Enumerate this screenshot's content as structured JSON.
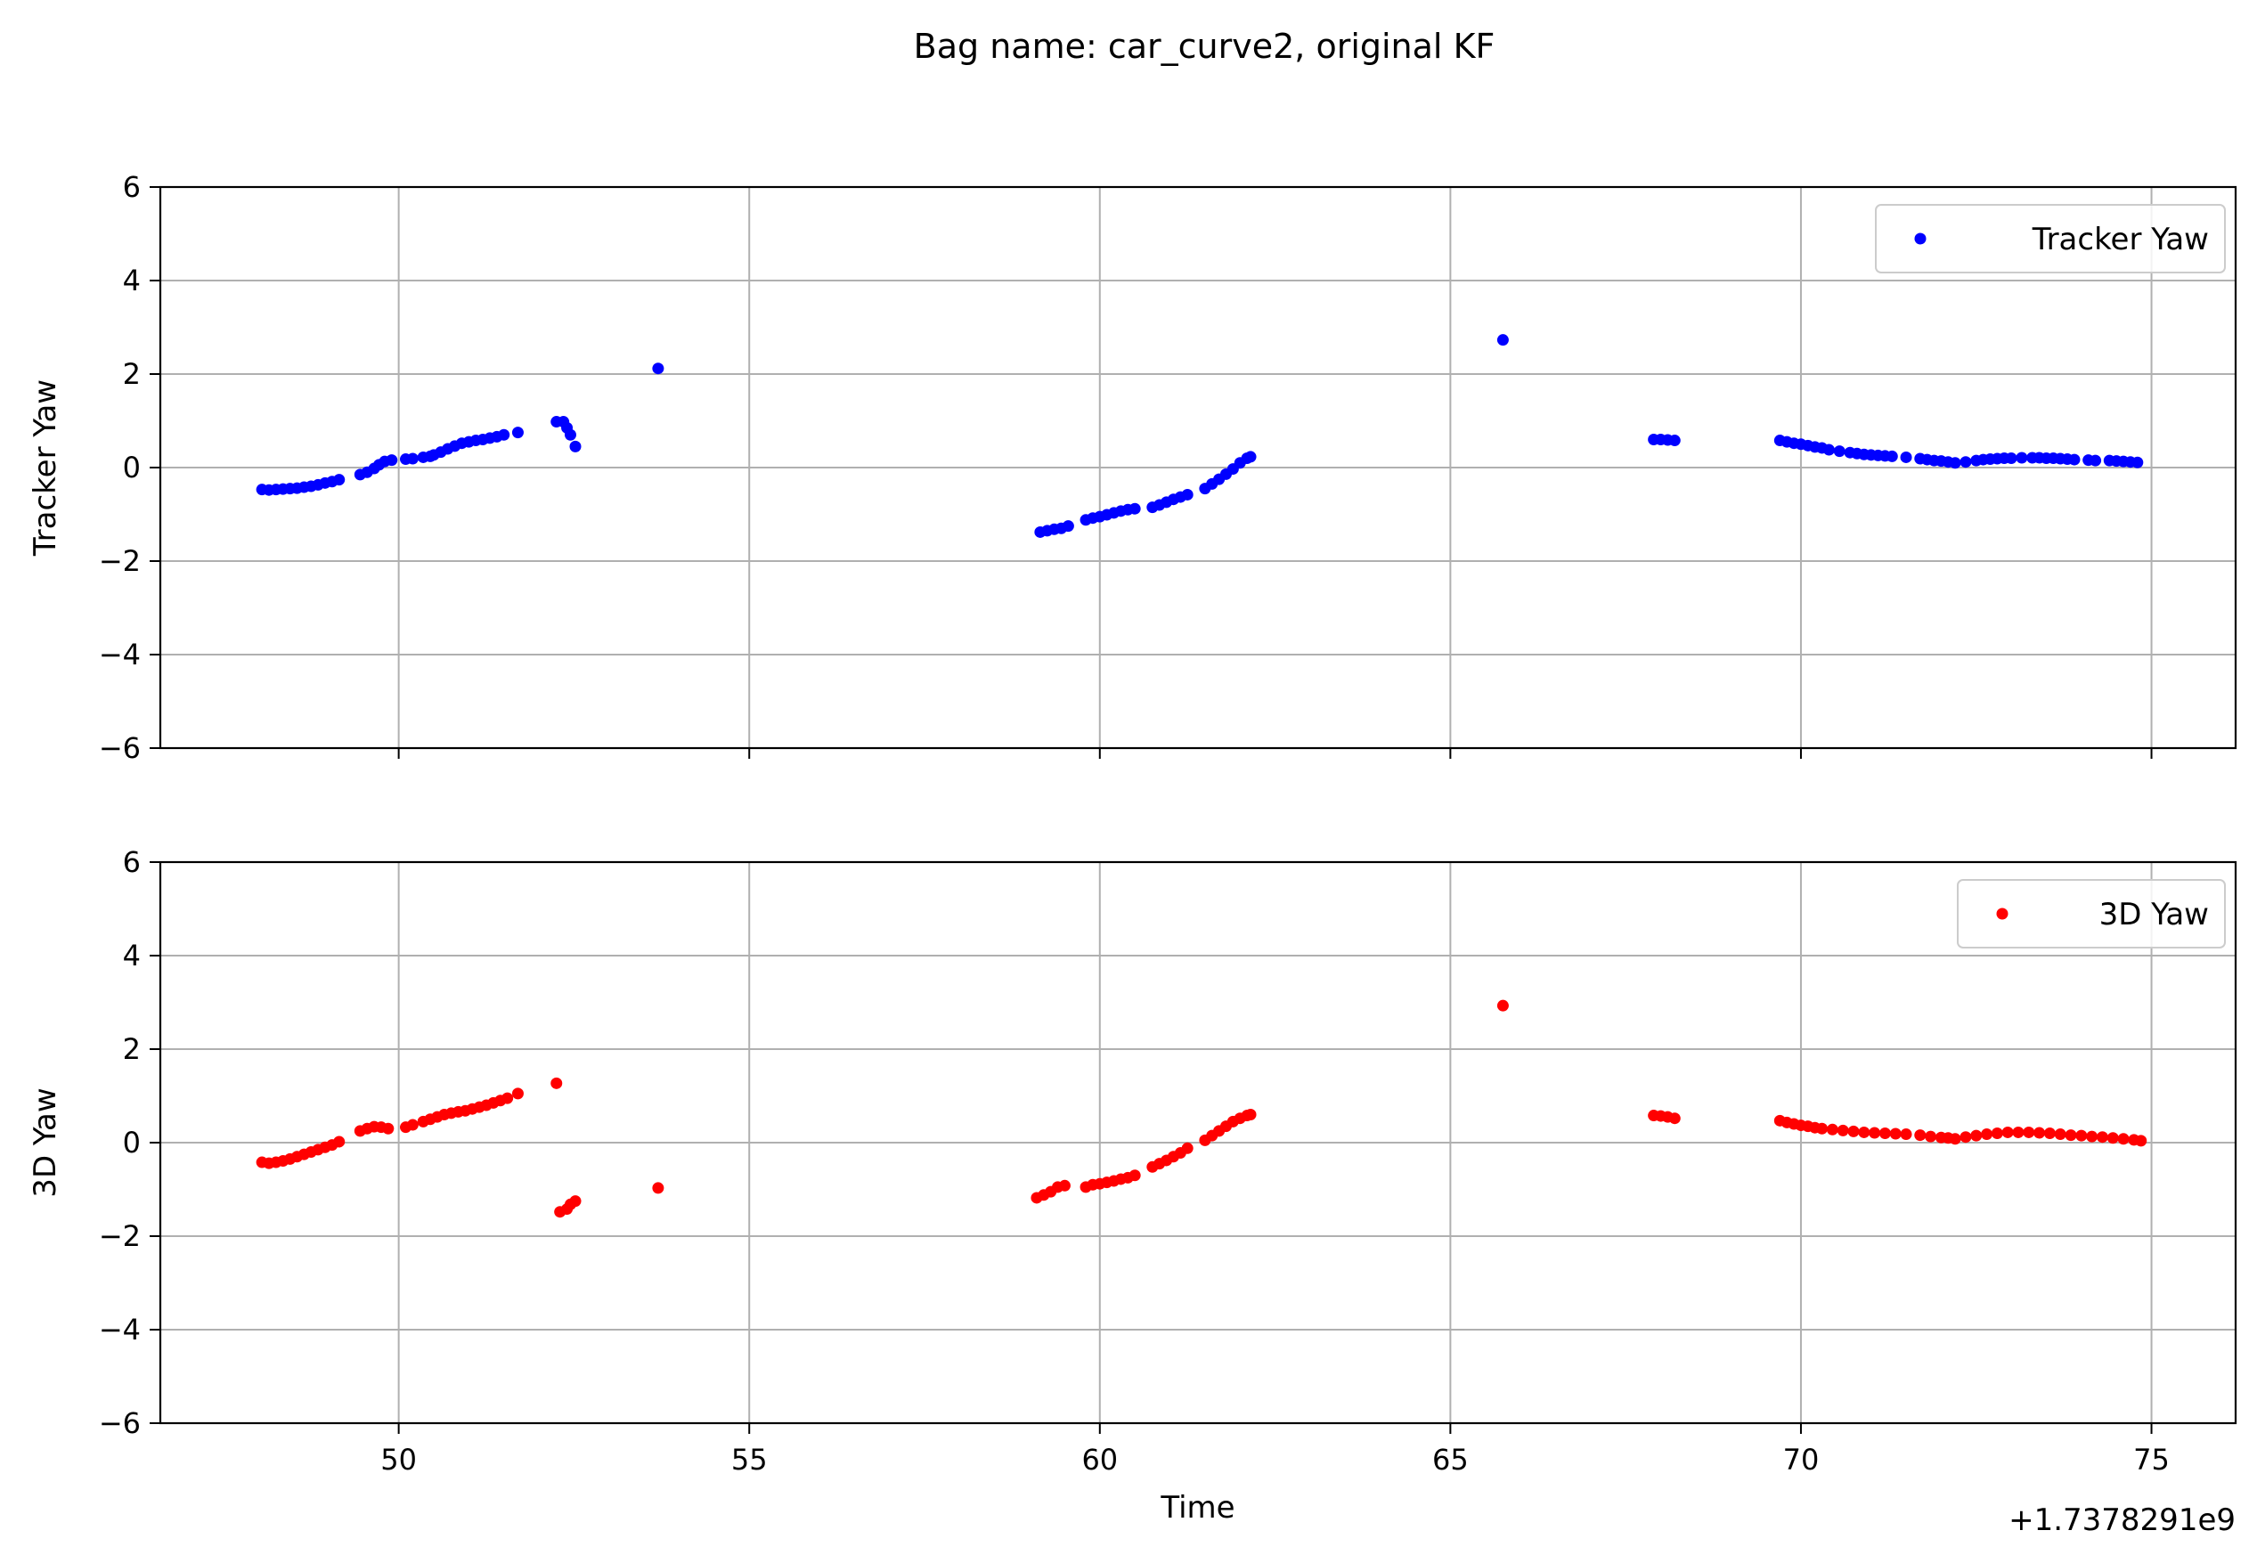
{
  "figure": {
    "title": "Bag name: car_curve2, original KF",
    "x_offset_label": "+1.7378291e9"
  },
  "chart_data": [
    {
      "type": "scatter",
      "id": "top",
      "ylabel": "Tracker Yaw",
      "xlabel": "",
      "xlim": [
        46.6,
        76.2
      ],
      "ylim": [
        -6,
        6
      ],
      "xticks": [
        50,
        55,
        60,
        65,
        70,
        75
      ],
      "yticks": [
        -6,
        -4,
        -2,
        0,
        2,
        4,
        6
      ],
      "grid": true,
      "legend_position": "upper-right",
      "series": [
        {
          "name": "Tracker Yaw",
          "color": "#0000ff",
          "x": [
            48.05,
            48.15,
            48.25,
            48.35,
            48.45,
            48.55,
            48.65,
            48.75,
            48.85,
            48.95,
            49.05,
            49.15,
            49.45,
            49.55,
            49.65,
            49.72,
            49.8,
            49.9,
            50.1,
            50.2,
            50.35,
            50.45,
            50.5,
            50.6,
            50.7,
            50.8,
            50.9,
            51.0,
            51.1,
            51.2,
            51.3,
            51.4,
            51.5,
            51.7,
            52.25,
            52.35,
            52.4,
            52.45,
            52.52,
            53.7,
            59.15,
            59.25,
            59.35,
            59.45,
            59.55,
            59.8,
            59.9,
            60.0,
            60.1,
            60.2,
            60.3,
            60.4,
            60.5,
            60.75,
            60.85,
            60.95,
            61.05,
            61.15,
            61.25,
            61.5,
            61.6,
            61.7,
            61.8,
            61.9,
            62.0,
            62.1,
            62.15,
            65.75,
            67.9,
            68.0,
            68.1,
            68.2,
            69.7,
            69.8,
            69.9,
            70.0,
            70.1,
            70.2,
            70.3,
            70.4,
            70.55,
            70.7,
            70.8,
            70.9,
            71.0,
            71.1,
            71.2,
            71.3,
            71.5,
            71.7,
            71.8,
            71.9,
            72.0,
            72.1,
            72.2,
            72.35,
            72.5,
            72.6,
            72.7,
            72.8,
            72.9,
            73.0,
            73.15,
            73.3,
            73.4,
            73.5,
            73.6,
            73.7,
            73.8,
            73.9,
            74.1,
            74.2,
            74.4,
            74.5,
            74.6,
            74.7,
            74.8
          ],
          "y": [
            -0.47,
            -0.48,
            -0.47,
            -0.46,
            -0.45,
            -0.44,
            -0.42,
            -0.4,
            -0.37,
            -0.33,
            -0.3,
            -0.26,
            -0.15,
            -0.1,
            -0.02,
            0.06,
            0.13,
            0.16,
            0.18,
            0.19,
            0.22,
            0.24,
            0.27,
            0.33,
            0.4,
            0.46,
            0.52,
            0.55,
            0.58,
            0.6,
            0.63,
            0.66,
            0.7,
            0.75,
            0.98,
            0.98,
            0.85,
            0.7,
            0.45,
            2.12,
            -1.38,
            -1.35,
            -1.32,
            -1.3,
            -1.25,
            -1.12,
            -1.08,
            -1.05,
            -1.01,
            -0.97,
            -0.93,
            -0.9,
            -0.88,
            -0.85,
            -0.8,
            -0.74,
            -0.68,
            -0.63,
            -0.58,
            -0.45,
            -0.35,
            -0.25,
            -0.14,
            -0.03,
            0.1,
            0.2,
            0.23,
            2.73,
            0.6,
            0.6,
            0.59,
            0.58,
            0.58,
            0.55,
            0.52,
            0.5,
            0.47,
            0.44,
            0.42,
            0.38,
            0.35,
            0.32,
            0.3,
            0.28,
            0.27,
            0.26,
            0.25,
            0.24,
            0.22,
            0.19,
            0.17,
            0.15,
            0.14,
            0.12,
            0.1,
            0.12,
            0.15,
            0.17,
            0.18,
            0.19,
            0.2,
            0.2,
            0.21,
            0.21,
            0.21,
            0.2,
            0.2,
            0.19,
            0.18,
            0.17,
            0.16,
            0.15,
            0.15,
            0.14,
            0.13,
            0.12,
            0.11
          ]
        }
      ]
    },
    {
      "type": "scatter",
      "id": "bottom",
      "ylabel": "3D Yaw",
      "xlabel": "Time",
      "xlim": [
        46.6,
        76.2
      ],
      "ylim": [
        -6,
        6
      ],
      "xticks": [
        50,
        55,
        60,
        65,
        70,
        75
      ],
      "yticks": [
        -6,
        -4,
        -2,
        0,
        2,
        4,
        6
      ],
      "grid": true,
      "legend_position": "upper-right",
      "series": [
        {
          "name": "3D Yaw",
          "color": "#ff0000",
          "x": [
            48.05,
            48.15,
            48.25,
            48.35,
            48.45,
            48.55,
            48.65,
            48.75,
            48.85,
            48.95,
            49.05,
            49.15,
            49.45,
            49.55,
            49.65,
            49.75,
            49.85,
            50.1,
            50.2,
            50.35,
            50.45,
            50.55,
            50.65,
            50.75,
            50.85,
            50.95,
            51.05,
            51.15,
            51.25,
            51.35,
            51.45,
            51.55,
            51.7,
            52.25,
            52.3,
            52.4,
            52.45,
            52.52,
            53.7,
            59.1,
            59.2,
            59.3,
            59.4,
            59.5,
            59.8,
            59.9,
            60.0,
            60.1,
            60.2,
            60.3,
            60.4,
            60.5,
            60.75,
            60.85,
            60.95,
            61.05,
            61.15,
            61.25,
            61.5,
            61.6,
            61.7,
            61.8,
            61.9,
            62.0,
            62.1,
            62.15,
            65.75,
            67.9,
            68.0,
            68.1,
            68.2,
            69.7,
            69.8,
            69.9,
            70.0,
            70.1,
            70.2,
            70.3,
            70.45,
            70.6,
            70.75,
            70.9,
            71.05,
            71.2,
            71.35,
            71.5,
            71.7,
            71.85,
            72.0,
            72.1,
            72.2,
            72.35,
            72.5,
            72.65,
            72.8,
            72.95,
            73.1,
            73.25,
            73.4,
            73.55,
            73.7,
            73.85,
            74.0,
            74.15,
            74.3,
            74.45,
            74.6,
            74.75,
            74.85
          ],
          "y": [
            -0.42,
            -0.44,
            -0.42,
            -0.39,
            -0.35,
            -0.3,
            -0.25,
            -0.2,
            -0.15,
            -0.1,
            -0.05,
            0.02,
            0.25,
            0.3,
            0.34,
            0.33,
            0.3,
            0.33,
            0.38,
            0.45,
            0.5,
            0.55,
            0.6,
            0.63,
            0.66,
            0.68,
            0.72,
            0.76,
            0.8,
            0.85,
            0.9,
            0.95,
            1.05,
            1.27,
            -1.48,
            -1.42,
            -1.32,
            -1.25,
            -0.97,
            -1.18,
            -1.12,
            -1.05,
            -0.95,
            -0.92,
            -0.95,
            -0.9,
            -0.88,
            -0.85,
            -0.82,
            -0.78,
            -0.75,
            -0.7,
            -0.52,
            -0.45,
            -0.38,
            -0.3,
            -0.22,
            -0.12,
            0.05,
            0.15,
            0.25,
            0.35,
            0.45,
            0.52,
            0.58,
            0.6,
            2.93,
            0.58,
            0.57,
            0.55,
            0.52,
            0.47,
            0.43,
            0.4,
            0.37,
            0.35,
            0.32,
            0.3,
            0.28,
            0.26,
            0.24,
            0.22,
            0.21,
            0.2,
            0.19,
            0.18,
            0.16,
            0.13,
            0.11,
            0.1,
            0.08,
            0.12,
            0.15,
            0.18,
            0.2,
            0.22,
            0.22,
            0.22,
            0.21,
            0.2,
            0.18,
            0.16,
            0.15,
            0.13,
            0.12,
            0.1,
            0.08,
            0.06,
            0.04
          ]
        }
      ]
    }
  ]
}
